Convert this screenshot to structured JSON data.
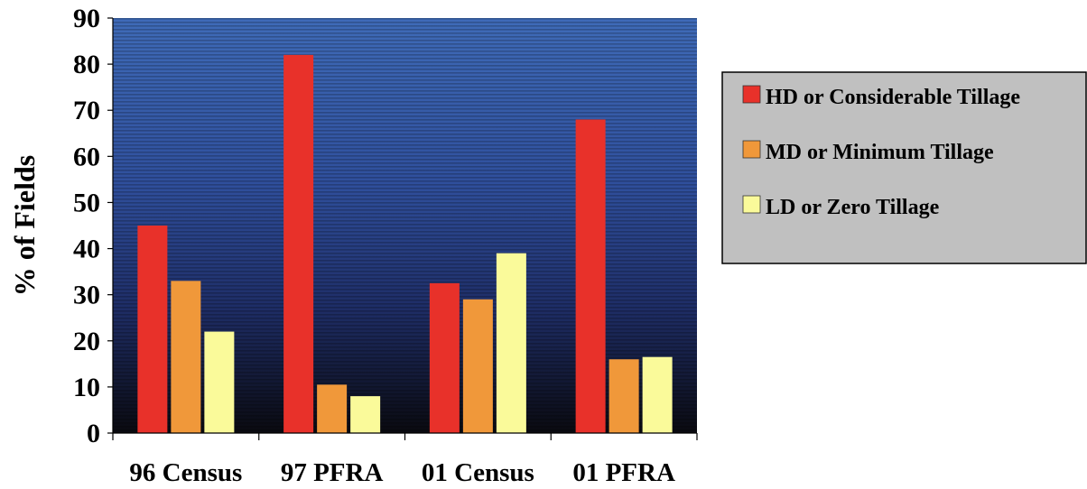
{
  "chart_data": {
    "type": "bar",
    "categories": [
      "96 Census",
      "97 PFRA",
      "01 Census",
      "01 PFRA"
    ],
    "series": [
      {
        "name": "HD or Considerable Tillage",
        "values": [
          45,
          82,
          32.5,
          68
        ],
        "color": "#e8312a"
      },
      {
        "name": "MD or Minimum Tillage",
        "values": [
          33,
          10.5,
          29,
          16
        ],
        "color": "#f0983a"
      },
      {
        "name": "LD or Zero Tillage",
        "values": [
          22,
          8,
          39,
          16.5
        ],
        "color": "#fafa9a"
      }
    ],
    "title": "",
    "xlabel": "",
    "ylabel": "% of Fields",
    "ylim": [
      0,
      90
    ],
    "yticks": [
      0,
      10,
      20,
      30,
      40,
      50,
      60,
      70,
      80,
      90
    ],
    "grid": false,
    "legend_position": "right",
    "plot_background": "blue-to-black gradient with horizontal stripes",
    "legend_background": "#c0c0c0"
  }
}
